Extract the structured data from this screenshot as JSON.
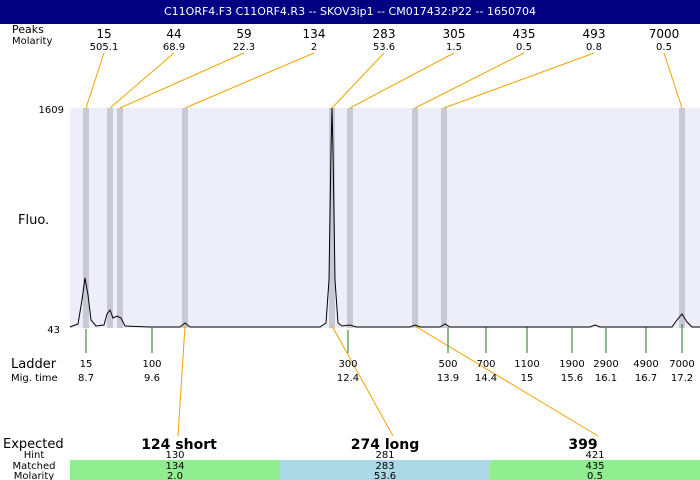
{
  "title": "C11ORF4.F3  C11ORF4.R3 -- SKOV3ip1 -- CM017432:P22 -- 1650704",
  "labels": {
    "peaks_size": "Peaks",
    "peaks_molarity": "Molarity",
    "fluo": "Fluo.",
    "ladder": "Ladder",
    "mig_time": "Mig. time",
    "expected": "Expected",
    "hint": "Hint",
    "matched": "Matched",
    "molarity": "Molarity"
  },
  "colors": {
    "title_bg": "#000080",
    "plot_bg": "#eeeefb",
    "peak_band": "#c9c9d6",
    "connector": "#f0a500",
    "ladder_tick": "#1a7a1a",
    "match_green": "#90ee90",
    "match_blue": "#add8e6"
  },
  "chart_data": {
    "type": "line",
    "y_axis": {
      "label": "Fluo.",
      "min": 43,
      "max": 1609,
      "ticks": [
        "1609",
        "43"
      ]
    },
    "peaks": [
      {
        "size": "15",
        "molarity": "505.1"
      },
      {
        "size": "44",
        "molarity": "68.9"
      },
      {
        "size": "59",
        "molarity": "22.3"
      },
      {
        "size": "134",
        "molarity": "2"
      },
      {
        "size": "283",
        "molarity": "53.6"
      },
      {
        "size": "305",
        "molarity": "1.5"
      },
      {
        "size": "435",
        "molarity": "0.5"
      },
      {
        "size": "493",
        "molarity": "0.8"
      },
      {
        "size": "7000",
        "molarity": "0.5"
      }
    ],
    "ladder": [
      {
        "size": "15",
        "time": "8.7"
      },
      {
        "size": "100",
        "time": "9.6"
      },
      {
        "size": "300",
        "time": "12.4"
      },
      {
        "size": "500",
        "time": "13.9"
      },
      {
        "size": "700",
        "time": "14.4"
      },
      {
        "size": "1100",
        "time": "15"
      },
      {
        "size": "1900",
        "time": "15.6"
      },
      {
        "size": "2900",
        "time": "16.1"
      },
      {
        "size": "4900",
        "time": "16.7"
      },
      {
        "size": "7000",
        "time": "17.2"
      }
    ],
    "expected": [
      {
        "label": "124 short",
        "hint": "130",
        "matched": "134",
        "molarity": "2.0"
      },
      {
        "label": "274 long",
        "hint": "281",
        "matched": "283",
        "molarity": "53.6"
      },
      {
        "label": "399",
        "hint": "421",
        "matched": "435",
        "molarity": "0.5"
      }
    ]
  }
}
